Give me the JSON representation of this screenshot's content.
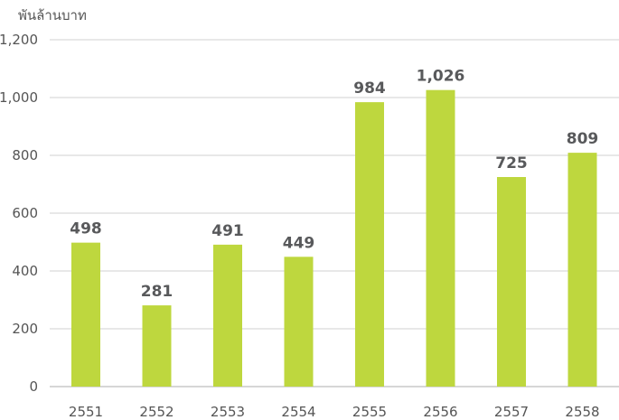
{
  "chart_data": {
    "type": "bar",
    "ylabel": "พันล้านบาท",
    "categories": [
      "2551",
      "2552",
      "2553",
      "2554",
      "2555",
      "2556",
      "2557",
      "2558"
    ],
    "values": [
      498,
      281,
      491,
      449,
      984,
      1026,
      725,
      809
    ],
    "value_labels": [
      "498",
      "281",
      "491",
      "449",
      "984",
      "1,026",
      "725",
      "809"
    ],
    "y_ticks": [
      0,
      200,
      400,
      600,
      800,
      1000,
      1200
    ],
    "y_tick_labels": [
      "0",
      "200",
      "400",
      "600",
      "800",
      "1,000",
      "1,200"
    ],
    "ylim": [
      0,
      1200
    ],
    "grid": true,
    "legend": "none",
    "bar_color": "#bed73e"
  }
}
